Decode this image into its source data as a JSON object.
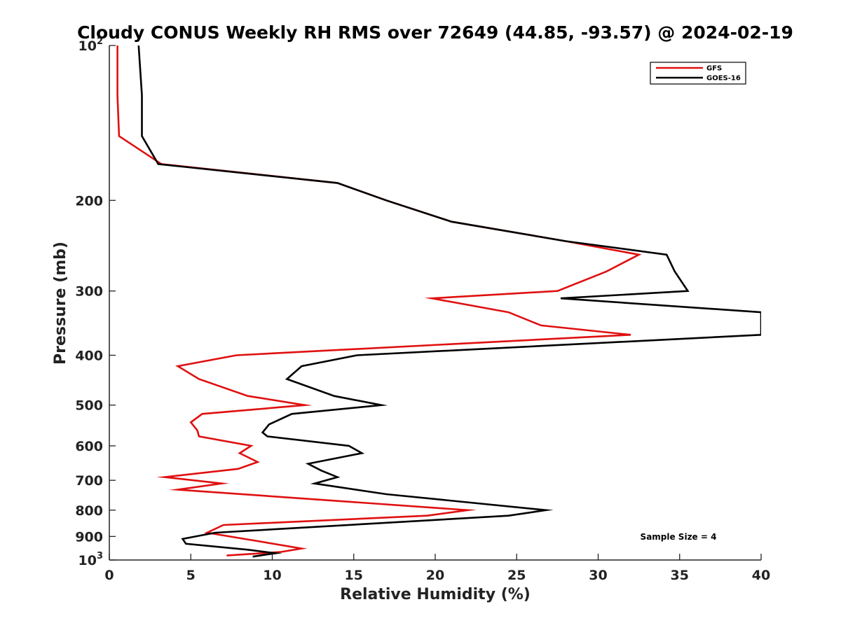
{
  "chart_data": {
    "type": "line",
    "title": "Cloudy CONUS Weekly RH RMS over 72649 (44.85, -93.57) @ 2024-02-19",
    "xlabel": "Relative Humidity (%)",
    "ylabel": "Pressure (mb)",
    "xlim": [
      0,
      40
    ],
    "ylim": [
      100,
      1000
    ],
    "y_scale": "log",
    "y_reversed": true,
    "grid": false,
    "legend_position": "top-right",
    "x_ticks": [
      "0",
      "5",
      "10",
      "15",
      "20",
      "25",
      "30",
      "35",
      "40"
    ],
    "y_ticks": [
      {
        "value": 100,
        "base": "10",
        "exp": "2"
      },
      {
        "value": 200,
        "label": "200"
      },
      {
        "value": 300,
        "label": "300"
      },
      {
        "value": 400,
        "label": "400"
      },
      {
        "value": 500,
        "label": "500"
      },
      {
        "value": 600,
        "label": "600"
      },
      {
        "value": 700,
        "label": "700"
      },
      {
        "value": 800,
        "label": "800"
      },
      {
        "value": 900,
        "label": "900"
      },
      {
        "value": 1000,
        "base": "10",
        "exp": "3"
      }
    ],
    "annotation": "Sample Size = 4",
    "series": [
      {
        "name": "GFS",
        "color": "#e01010",
        "points": [
          [
            0.5,
            100
          ],
          [
            0.5,
            125
          ],
          [
            0.6,
            150
          ],
          [
            3.2,
            170
          ],
          [
            14.0,
            185
          ],
          [
            17.0,
            200
          ],
          [
            21.0,
            220
          ],
          [
            28.0,
            240
          ],
          [
            32.5,
            255
          ],
          [
            30.5,
            275
          ],
          [
            27.5,
            300
          ],
          [
            19.8,
            310
          ],
          [
            24.5,
            330
          ],
          [
            26.5,
            350
          ],
          [
            32.0,
            365
          ],
          [
            7.8,
            400
          ],
          [
            4.2,
            420
          ],
          [
            5.5,
            445
          ],
          [
            8.5,
            480
          ],
          [
            12.0,
            500
          ],
          [
            5.7,
            520
          ],
          [
            5.0,
            540
          ],
          [
            5.4,
            560
          ],
          [
            5.5,
            575
          ],
          [
            8.7,
            600
          ],
          [
            8.0,
            620
          ],
          [
            9.1,
            645
          ],
          [
            7.9,
            665
          ],
          [
            3.4,
            690
          ],
          [
            6.9,
            710
          ],
          [
            4.2,
            730
          ],
          [
            22.0,
            800
          ],
          [
            19.5,
            820
          ],
          [
            7.0,
            855
          ],
          [
            6.0,
            885
          ],
          [
            9.2,
            920
          ],
          [
            11.8,
            950
          ],
          [
            10.5,
            965
          ],
          [
            7.2,
            980
          ]
        ]
      },
      {
        "name": "GOES-16",
        "color": "#000000",
        "points": [
          [
            1.8,
            100
          ],
          [
            2.0,
            125
          ],
          [
            2.0,
            150
          ],
          [
            3.0,
            170
          ],
          [
            14.0,
            185
          ],
          [
            17.0,
            200
          ],
          [
            21.0,
            220
          ],
          [
            28.0,
            240
          ],
          [
            34.2,
            255
          ],
          [
            34.7,
            275
          ],
          [
            35.5,
            300
          ],
          [
            27.7,
            310
          ],
          [
            40.0,
            330
          ],
          [
            40.0,
            365
          ],
          [
            15.2,
            400
          ],
          [
            11.8,
            420
          ],
          [
            10.9,
            445
          ],
          [
            13.8,
            480
          ],
          [
            16.7,
            500
          ],
          [
            11.2,
            520
          ],
          [
            9.8,
            545
          ],
          [
            9.4,
            565
          ],
          [
            9.7,
            575
          ],
          [
            14.7,
            600
          ],
          [
            15.5,
            620
          ],
          [
            12.2,
            650
          ],
          [
            13.0,
            670
          ],
          [
            14.0,
            690
          ],
          [
            12.6,
            710
          ],
          [
            17.0,
            745
          ],
          [
            26.8,
            800
          ],
          [
            24.5,
            820
          ],
          [
            6.5,
            885
          ],
          [
            4.5,
            910
          ],
          [
            4.7,
            930
          ],
          [
            8.5,
            955
          ],
          [
            10.2,
            970
          ],
          [
            8.8,
            985
          ]
        ]
      }
    ]
  }
}
